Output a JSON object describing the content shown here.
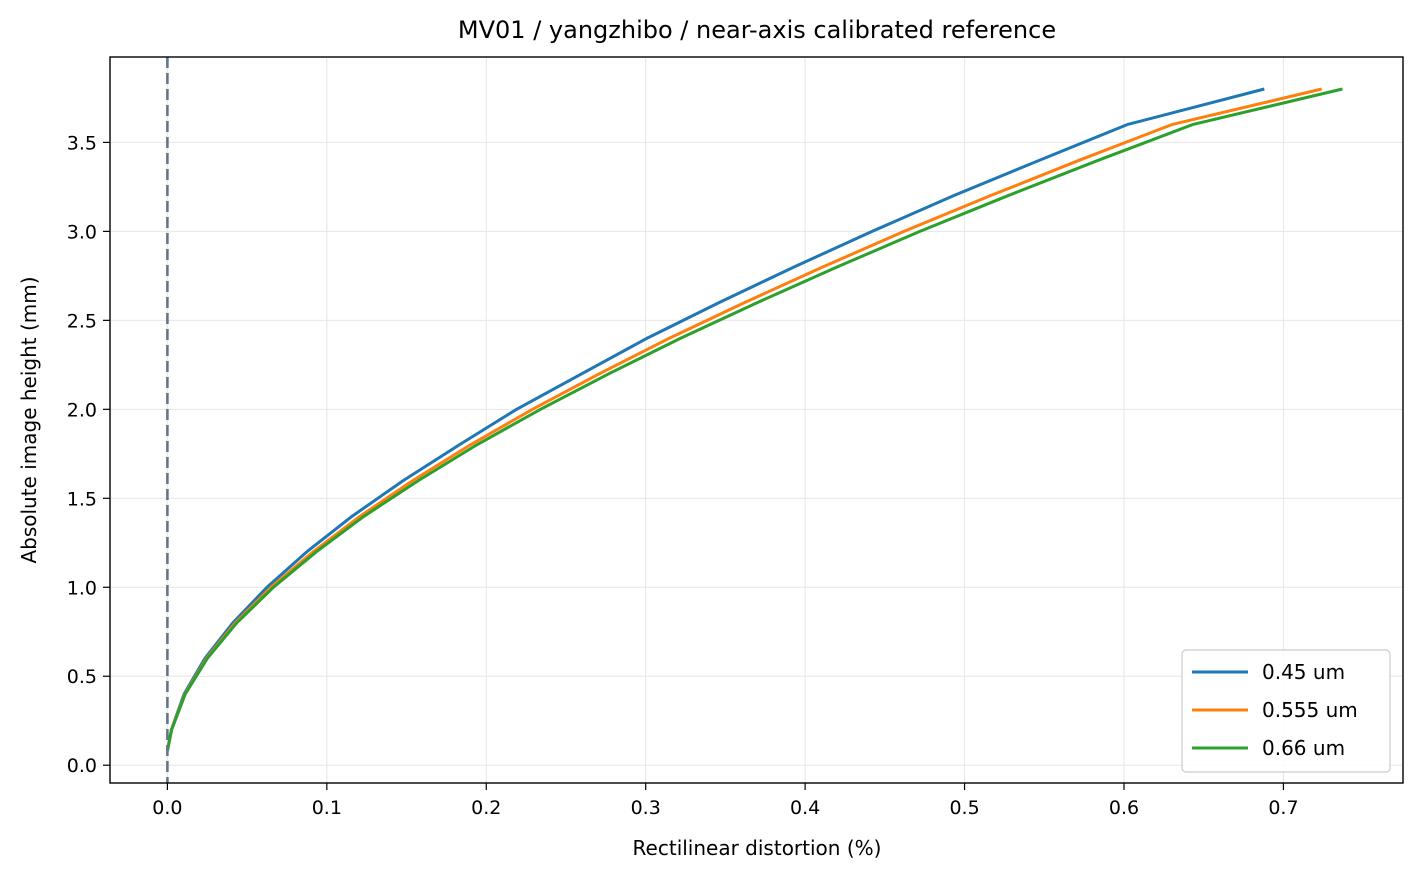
{
  "chart_data": {
    "type": "line",
    "title": "MV01 / yangzhibo / near-axis calibrated reference",
    "xlabel": "Rectilinear distortion (%)",
    "ylabel": "Absolute image height (mm)",
    "xlim": [
      -0.036,
      0.775
    ],
    "ylim": [
      -0.1,
      3.98
    ],
    "xticks": [
      0.0,
      0.1,
      0.2,
      0.3,
      0.4,
      0.5,
      0.6,
      0.7
    ],
    "xtick_labels": [
      "0.0",
      "0.1",
      "0.2",
      "0.3",
      "0.4",
      "0.5",
      "0.6",
      "0.7"
    ],
    "yticks": [
      0.0,
      0.5,
      1.0,
      1.5,
      2.0,
      2.5,
      3.0,
      3.5
    ],
    "ytick_labels": [
      "0.0",
      "0.5",
      "1.0",
      "1.5",
      "2.0",
      "2.5",
      "3.0",
      "3.5"
    ],
    "grid": true,
    "legend_position": "lower-right",
    "reference_line": {
      "x": 0.0,
      "style": "dashed",
      "color": "#64748b"
    },
    "series": [
      {
        "name": "0.45 um",
        "color": "#1f77b4",
        "points": [
          [
            0.0,
            0.08
          ],
          [
            0.0025,
            0.2
          ],
          [
            0.0105,
            0.4
          ],
          [
            0.0235,
            0.6
          ],
          [
            0.041,
            0.8
          ],
          [
            0.0625,
            1.0
          ],
          [
            0.0875,
            1.2
          ],
          [
            0.116,
            1.4
          ],
          [
            0.148,
            1.6
          ],
          [
            0.183,
            1.8
          ],
          [
            0.219,
            2.0
          ],
          [
            0.26,
            2.2
          ],
          [
            0.301,
            2.4
          ],
          [
            0.346,
            2.6
          ],
          [
            0.393,
            2.8
          ],
          [
            0.442,
            3.0
          ],
          [
            0.493,
            3.2
          ],
          [
            0.547,
            3.4
          ],
          [
            0.602,
            3.6
          ],
          [
            0.688,
            3.8
          ]
        ]
      },
      {
        "name": "0.555 um",
        "color": "#ff7f0e",
        "points": [
          [
            0.0,
            0.08
          ],
          [
            0.0026,
            0.2
          ],
          [
            0.011,
            0.4
          ],
          [
            0.0245,
            0.6
          ],
          [
            0.0425,
            0.8
          ],
          [
            0.065,
            1.0
          ],
          [
            0.0915,
            1.2
          ],
          [
            0.121,
            1.4
          ],
          [
            0.154,
            1.6
          ],
          [
            0.19,
            1.8
          ],
          [
            0.229,
            2.0
          ],
          [
            0.271,
            2.2
          ],
          [
            0.315,
            2.4
          ],
          [
            0.362,
            2.6
          ],
          [
            0.411,
            2.8
          ],
          [
            0.462,
            3.0
          ],
          [
            0.516,
            3.2
          ],
          [
            0.572,
            3.4
          ],
          [
            0.63,
            3.6
          ],
          [
            0.724,
            3.8
          ]
        ]
      },
      {
        "name": "0.66 um",
        "color": "#2ca02c",
        "points": [
          [
            0.0,
            0.08
          ],
          [
            0.0027,
            0.2
          ],
          [
            0.0112,
            0.4
          ],
          [
            0.025,
            0.6
          ],
          [
            0.0435,
            0.8
          ],
          [
            0.0665,
            1.0
          ],
          [
            0.0935,
            1.2
          ],
          [
            0.1235,
            1.4
          ],
          [
            0.1575,
            1.6
          ],
          [
            0.194,
            1.8
          ],
          [
            0.234,
            2.0
          ],
          [
            0.277,
            2.2
          ],
          [
            0.322,
            2.4
          ],
          [
            0.37,
            2.6
          ],
          [
            0.42,
            2.8
          ],
          [
            0.472,
            3.0
          ],
          [
            0.527,
            3.2
          ],
          [
            0.584,
            3.4
          ],
          [
            0.643,
            3.6
          ],
          [
            0.737,
            3.8
          ]
        ]
      }
    ]
  }
}
